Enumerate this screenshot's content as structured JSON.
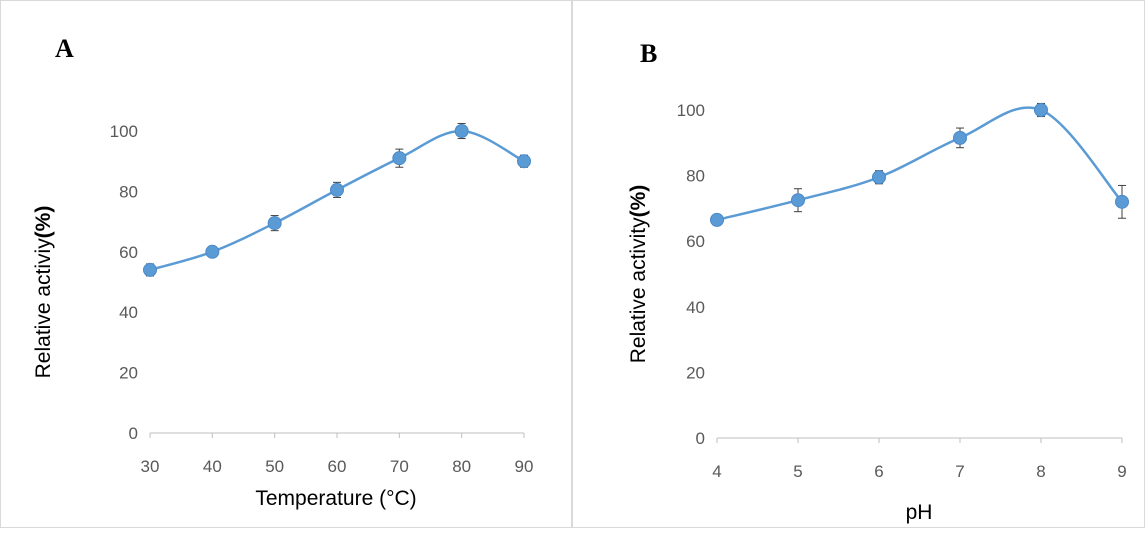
{
  "chart_data": [
    {
      "type": "line",
      "panel_label": "A",
      "xlabel": "Temperature (°C)",
      "ylabel_main": "Relative activiy",
      "ylabel_paren": "(%)",
      "x": [
        30,
        40,
        50,
        60,
        70,
        80,
        90
      ],
      "x_ticks": [
        "30",
        "40",
        "50",
        "60",
        "70",
        "80",
        "90"
      ],
      "y_ticks": [
        "0",
        "20",
        "40",
        "60",
        "80",
        "100"
      ],
      "ylim": [
        0,
        100
      ],
      "series": [
        {
          "values": [
            54,
            60,
            69.5,
            80.5,
            91,
            100,
            90
          ],
          "errors": [
            2,
            1,
            2.5,
            2.5,
            3,
            2.5,
            2
          ]
        }
      ],
      "color": "#5b9bd5",
      "smooth": true,
      "grid": false
    },
    {
      "type": "line",
      "panel_label": "B",
      "xlabel": "pH",
      "ylabel_main": "Relative activity",
      "ylabel_paren": "(%)",
      "x": [
        4,
        5,
        6,
        7,
        8,
        9
      ],
      "x_ticks": [
        "4",
        "5",
        "6",
        "7",
        "8",
        "9"
      ],
      "y_ticks": [
        "0",
        "20",
        "40",
        "60",
        "80",
        "100"
      ],
      "ylim": [
        0,
        100
      ],
      "series": [
        {
          "values": [
            66.5,
            72.5,
            79.5,
            91.5,
            100,
            72
          ],
          "errors": [
            1.5,
            3.5,
            2,
            3,
            2,
            5
          ]
        }
      ],
      "color": "#5b9bd5",
      "smooth": true,
      "grid": false
    }
  ]
}
